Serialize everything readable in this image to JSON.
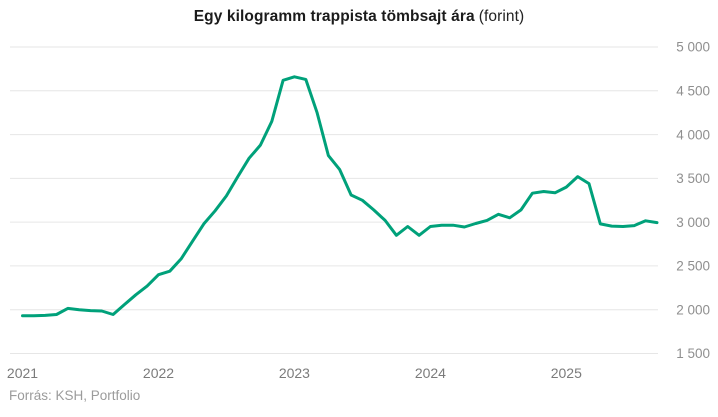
{
  "title": {
    "main": "Egy kilogramm trappista tömbsajt ára",
    "unit": "(forint)"
  },
  "source": "Forrás: KSH, Portfolio",
  "colors": {
    "line": "#00a17a",
    "grid": "#e6e6e6",
    "y_label": "#8f8f8f",
    "x_label": "#7b7b7b",
    "title": "#1b1b1b",
    "source": "#9b9b9b",
    "background": "#ffffff"
  },
  "chart_data": {
    "type": "line",
    "title": "Egy kilogramm trappista tömbsajt ára (forint)",
    "series_name": "Trappista tömbsajt ára (Ft/kg)",
    "x": [
      "2021-01",
      "2021-02",
      "2021-03",
      "2021-04",
      "2021-05",
      "2021-06",
      "2021-07",
      "2021-08",
      "2021-09",
      "2021-10",
      "2021-11",
      "2021-12",
      "2022-01",
      "2022-02",
      "2022-03",
      "2022-04",
      "2022-05",
      "2022-06",
      "2022-07",
      "2022-08",
      "2022-09",
      "2022-10",
      "2022-11",
      "2022-12",
      "2023-01",
      "2023-02",
      "2023-03",
      "2023-04",
      "2023-05",
      "2023-06",
      "2023-07",
      "2023-08",
      "2023-09",
      "2023-10",
      "2023-11",
      "2023-12",
      "2024-01",
      "2024-02",
      "2024-03",
      "2024-04",
      "2024-05",
      "2024-06",
      "2024-07",
      "2024-08",
      "2024-09",
      "2024-10",
      "2024-11",
      "2024-12",
      "2025-01",
      "2025-02",
      "2025-03",
      "2025-04",
      "2025-05",
      "2025-06",
      "2025-07",
      "2025-08",
      "2025-09"
    ],
    "values": [
      1930,
      1930,
      1935,
      1945,
      2015,
      2000,
      1990,
      1985,
      1945,
      2060,
      2170,
      2270,
      2400,
      2440,
      2580,
      2780,
      2980,
      3130,
      3300,
      3520,
      3730,
      3880,
      4150,
      4620,
      4660,
      4630,
      4250,
      3760,
      3600,
      3310,
      3250,
      3140,
      3020,
      2850,
      2950,
      2850,
      2950,
      2965,
      2965,
      2945,
      2985,
      3020,
      3090,
      3050,
      3140,
      3330,
      3350,
      3335,
      3400,
      3520,
      3440,
      2980,
      2955,
      2950,
      2960,
      3015,
      2995
    ],
    "ylim": [
      1500,
      5000
    ],
    "y_ticks": [
      5000,
      4500,
      4000,
      3500,
      3000,
      2500,
      2000,
      1500
    ],
    "y_tick_labels": [
      "5 000",
      "4 500",
      "4 000",
      "3 500",
      "3 000",
      "2 500",
      "2 000",
      "1 500"
    ],
    "x_tick_labels": [
      "2021",
      "2022",
      "2023",
      "2024",
      "2025"
    ],
    "x_tick_month_index": [
      0,
      12,
      24,
      36,
      48
    ],
    "grid": "horizontal",
    "legend": "none",
    "y_axis_side": "right"
  }
}
